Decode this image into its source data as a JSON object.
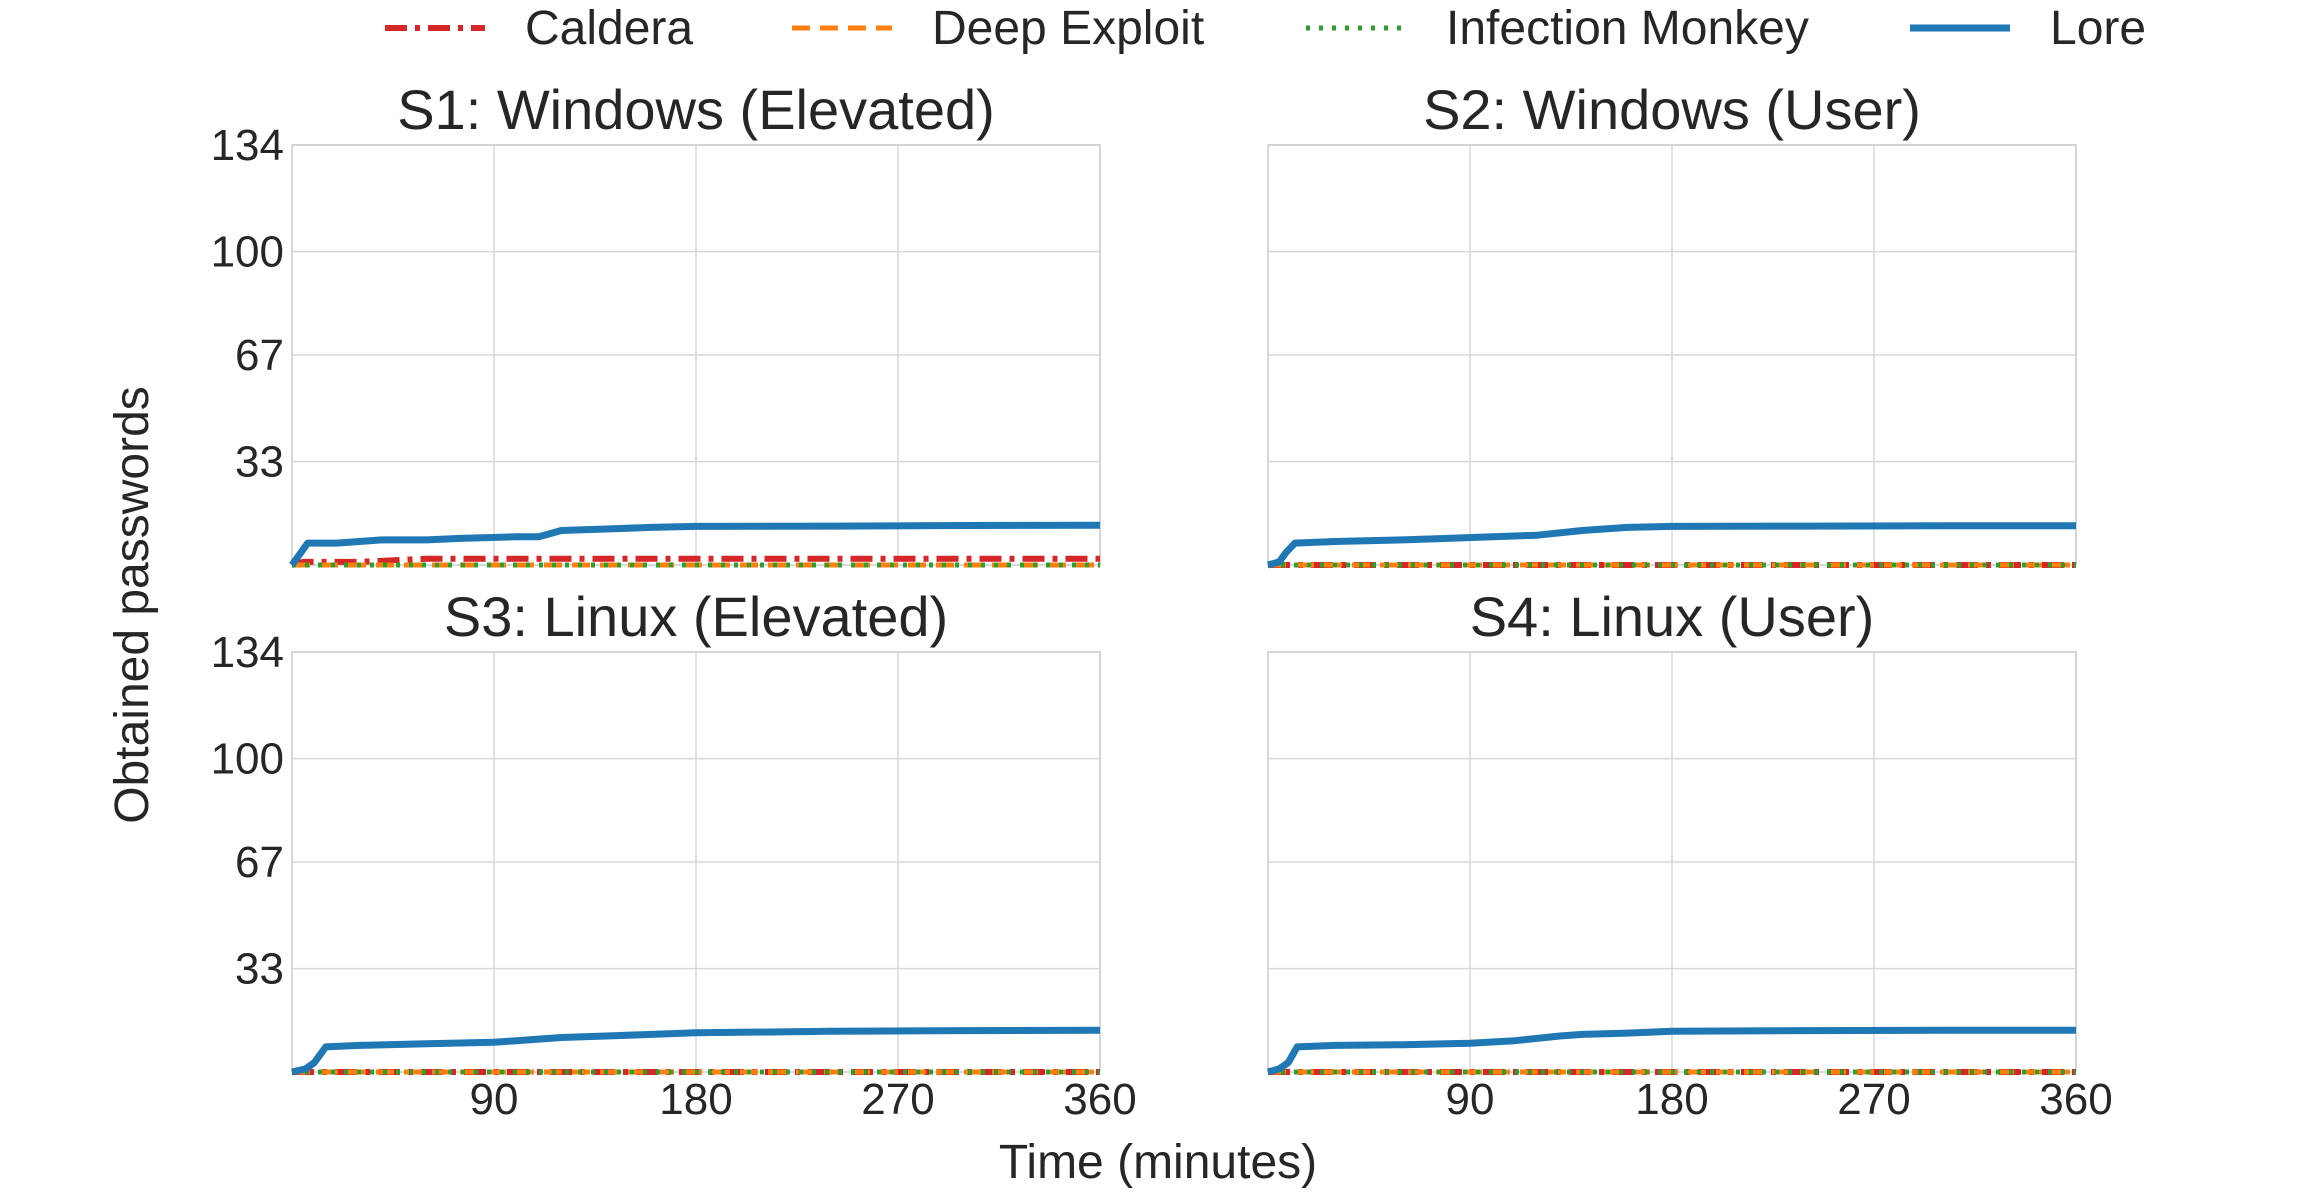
{
  "chart_data": {
    "type": "line",
    "xlabel": "Time (minutes)",
    "ylabel": "Obtained passwords",
    "xlim": [
      0,
      360
    ],
    "ylim": [
      0,
      134
    ],
    "xticks": [
      90,
      180,
      270,
      360
    ],
    "yticks": [
      33,
      67,
      100,
      134
    ],
    "grid": true,
    "legend": {
      "placement": "top-center",
      "entries": [
        "Caldera",
        "Deep Exploit",
        "Infection Monkey",
        "Lore"
      ]
    },
    "series_styles": [
      {
        "name": "Caldera",
        "color": "#d62728",
        "dash": "dash-dot"
      },
      {
        "name": "Deep Exploit",
        "color": "#ff7f0e",
        "dash": "dashed"
      },
      {
        "name": "Infection Monkey",
        "color": "#2ca02c",
        "dash": "dotted"
      },
      {
        "name": "Lore",
        "color": "#1f77b4",
        "dash": "solid"
      }
    ],
    "panels": [
      {
        "title": "S1: Windows (Elevated)",
        "series": [
          {
            "name": "Caldera",
            "x": [
              0,
              5,
              30,
              60,
              360
            ],
            "y": [
              0,
              1,
              1,
              2,
              2
            ]
          },
          {
            "name": "Deep Exploit",
            "x": [
              0,
              360
            ],
            "y": [
              0,
              0
            ]
          },
          {
            "name": "Infection Monkey",
            "x": [
              0,
              360
            ],
            "y": [
              0,
              0
            ]
          },
          {
            "name": "Lore",
            "x": [
              0,
              3,
              7,
              20,
              40,
              60,
              75,
              100,
              110,
              120,
              140,
              160,
              180,
              240,
              300,
              360
            ],
            "y": [
              0,
              3,
              7,
              7,
              8,
              8,
              8.5,
              9,
              9,
              11,
              11.5,
              12,
              12.3,
              12.4,
              12.6,
              12.7
            ]
          }
        ]
      },
      {
        "title": "S2: Windows (User)",
        "series": [
          {
            "name": "Caldera",
            "x": [
              0,
              360
            ],
            "y": [
              0,
              0
            ]
          },
          {
            "name": "Deep Exploit",
            "x": [
              0,
              360
            ],
            "y": [
              0,
              0
            ]
          },
          {
            "name": "Infection Monkey",
            "x": [
              0,
              360
            ],
            "y": [
              0,
              0
            ]
          },
          {
            "name": "Lore",
            "x": [
              0,
              5,
              8,
              12,
              30,
              60,
              80,
              100,
              120,
              140,
              160,
              180,
              240,
              300,
              360
            ],
            "y": [
              0,
              1,
              4,
              7,
              7.5,
              8,
              8.5,
              9,
              9.5,
              11,
              12,
              12.3,
              12.4,
              12.5,
              12.5
            ]
          }
        ]
      },
      {
        "title": "S3: Linux (Elevated)",
        "series": [
          {
            "name": "Caldera",
            "x": [
              0,
              360
            ],
            "y": [
              0,
              0
            ]
          },
          {
            "name": "Deep Exploit",
            "x": [
              0,
              360
            ],
            "y": [
              0,
              0
            ]
          },
          {
            "name": "Infection Monkey",
            "x": [
              0,
              360
            ],
            "y": [
              0,
              0
            ]
          },
          {
            "name": "Lore",
            "x": [
              0,
              6,
              10,
              15,
              30,
              60,
              90,
              100,
              120,
              140,
              160,
              180,
              240,
              300,
              360
            ],
            "y": [
              0,
              1,
              3,
              8,
              8.5,
              9,
              9.5,
              10,
              11,
              11.5,
              12,
              12.5,
              13,
              13.2,
              13.3
            ]
          }
        ]
      },
      {
        "title": "S4: Linux (User)",
        "series": [
          {
            "name": "Caldera",
            "x": [
              0,
              360
            ],
            "y": [
              0,
              0
            ]
          },
          {
            "name": "Deep Exploit",
            "x": [
              0,
              360
            ],
            "y": [
              0,
              0
            ]
          },
          {
            "name": "Infection Monkey",
            "x": [
              0,
              360
            ],
            "y": [
              0,
              0
            ]
          },
          {
            "name": "Lore",
            "x": [
              0,
              5,
              9,
              13,
              30,
              60,
              90,
              110,
              130,
              140,
              160,
              180,
              240,
              300,
              360
            ],
            "y": [
              0,
              1,
              3,
              8,
              8.5,
              8.7,
              9.2,
              10,
              11.5,
              12,
              12.4,
              13,
              13.2,
              13.3,
              13.3
            ]
          }
        ]
      }
    ]
  }
}
